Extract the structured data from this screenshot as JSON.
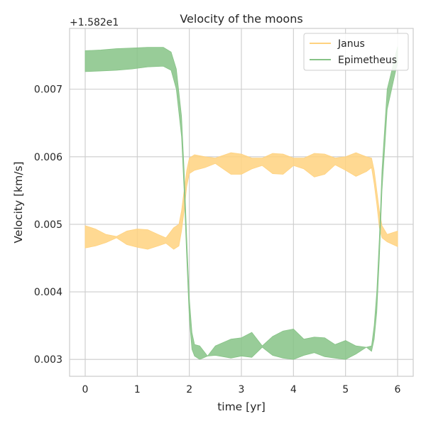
{
  "chart_data": {
    "type": "area",
    "title": "Velocity of the moons",
    "xlabel": "time [yr]",
    "ylabel": "Velocity [km/s]",
    "offset_text": "+1.582e1",
    "offset_value": 15.82,
    "xlim": [
      -0.3,
      6.3
    ],
    "ylim": [
      0.00275,
      0.0079
    ],
    "xticks": [
      0,
      1,
      2,
      3,
      4,
      5,
      6
    ],
    "xtick_labels": [
      "0",
      "1",
      "2",
      "3",
      "4",
      "5",
      "6"
    ],
    "yticks": [
      0.003,
      0.004,
      0.005,
      0.006,
      0.007
    ],
    "ytick_labels": [
      "0.003",
      "0.004",
      "0.005",
      "0.006",
      "0.007"
    ],
    "grid": true,
    "legend_position": "top-right",
    "series": [
      {
        "name": "Janus",
        "color": "#ffd27f",
        "x": [
          0,
          0.2,
          0.4,
          0.6,
          0.8,
          1.0,
          1.2,
          1.4,
          1.55,
          1.7,
          1.8,
          1.85,
          1.9,
          1.95,
          2.0,
          2.1,
          2.3,
          2.5,
          2.8,
          3.0,
          3.2,
          3.4,
          3.6,
          3.8,
          4.0,
          4.2,
          4.4,
          4.6,
          4.8,
          5.0,
          5.2,
          5.4,
          5.5,
          5.55,
          5.6,
          5.65,
          5.7,
          5.8,
          6.0
        ],
        "upper": [
          0.00498,
          0.00493,
          0.00485,
          0.00482,
          0.0049,
          0.00493,
          0.00492,
          0.00485,
          0.0048,
          0.00495,
          0.005,
          0.0052,
          0.0055,
          0.0058,
          0.00598,
          0.00603,
          0.006,
          0.00598,
          0.00606,
          0.00604,
          0.00598,
          0.00598,
          0.00605,
          0.00604,
          0.00598,
          0.00598,
          0.00605,
          0.00604,
          0.00598,
          0.006,
          0.00606,
          0.006,
          0.00598,
          0.0058,
          0.0055,
          0.0052,
          0.00498,
          0.00485,
          0.0049
        ],
        "lower": [
          0.00465,
          0.00468,
          0.00473,
          0.0048,
          0.0047,
          0.00466,
          0.00463,
          0.00468,
          0.00472,
          0.00463,
          0.00468,
          0.0049,
          0.0052,
          0.00556,
          0.00575,
          0.0058,
          0.00584,
          0.0059,
          0.00574,
          0.00574,
          0.00582,
          0.00587,
          0.00575,
          0.00574,
          0.00587,
          0.00582,
          0.0057,
          0.00574,
          0.00588,
          0.0058,
          0.00571,
          0.00578,
          0.00584,
          0.0056,
          0.0053,
          0.00495,
          0.0048,
          0.00474,
          0.00467
        ]
      },
      {
        "name": "Epimetheus",
        "color": "#86c386",
        "x": [
          0,
          0.3,
          0.6,
          0.9,
          1.2,
          1.5,
          1.65,
          1.75,
          1.85,
          1.9,
          1.95,
          2.0,
          2.05,
          2.1,
          2.2,
          2.35,
          2.5,
          2.8,
          3.0,
          3.2,
          3.4,
          3.6,
          3.8,
          4.0,
          4.2,
          4.4,
          4.6,
          4.8,
          5.0,
          5.2,
          5.4,
          5.5,
          5.55,
          5.6,
          5.65,
          5.7,
          5.8,
          6.0
        ],
        "upper": [
          0.00757,
          0.00758,
          0.0076,
          0.00761,
          0.00762,
          0.00762,
          0.00755,
          0.0073,
          0.0066,
          0.0058,
          0.0048,
          0.0039,
          0.0034,
          0.00322,
          0.0032,
          0.00305,
          0.0032,
          0.0033,
          0.00332,
          0.0034,
          0.0032,
          0.00334,
          0.00342,
          0.00345,
          0.0033,
          0.00333,
          0.00332,
          0.00322,
          0.00328,
          0.0032,
          0.00318,
          0.0032,
          0.0035,
          0.004,
          0.0048,
          0.0058,
          0.007,
          0.00763
        ],
        "lower": [
          0.00726,
          0.00727,
          0.00728,
          0.0073,
          0.00733,
          0.00734,
          0.00728,
          0.007,
          0.0063,
          0.0055,
          0.0045,
          0.0036,
          0.00315,
          0.00305,
          0.003,
          0.00305,
          0.00306,
          0.00302,
          0.00305,
          0.00303,
          0.00318,
          0.00306,
          0.00302,
          0.003,
          0.00306,
          0.0031,
          0.00304,
          0.00302,
          0.003,
          0.00308,
          0.00318,
          0.00312,
          0.0033,
          0.0037,
          0.0045,
          0.0055,
          0.0067,
          0.0074
        ]
      }
    ]
  }
}
